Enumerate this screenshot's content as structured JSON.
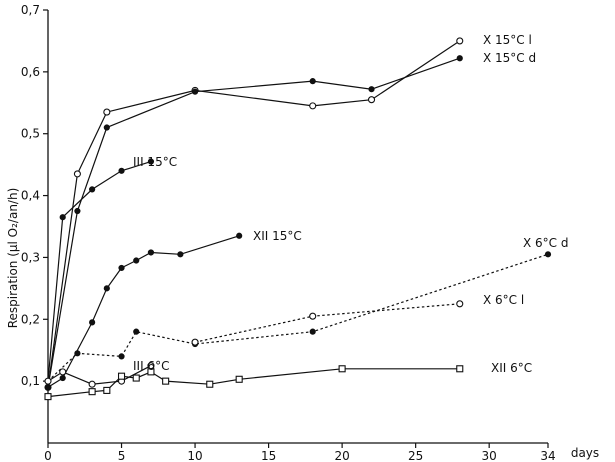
{
  "chart_data": {
    "type": "line",
    "title": "",
    "xlabel": "days",
    "ylabel": "Respiration (µl O₂/an/h)",
    "xlim": [
      0,
      34
    ],
    "ylim": [
      0,
      0.7
    ],
    "xticks": [
      0,
      5,
      10,
      15,
      20,
      25,
      30,
      34
    ],
    "xtick_labels": [
      "0",
      "5",
      "10",
      "15",
      "20",
      "25",
      "30",
      "34"
    ],
    "yticks": [
      0.1,
      0.2,
      0.3,
      0.4,
      0.5,
      0.6,
      0.7
    ],
    "ytick_labels": [
      "0,1",
      "0,2",
      "0,3",
      "0,4",
      "0,5",
      "0,6",
      "0,7"
    ],
    "grid": false,
    "series": [
      {
        "name": "X 15°C l",
        "marker": "open-circle",
        "line": "solid",
        "x": [
          0,
          2,
          4,
          10,
          18,
          22,
          28
        ],
        "y": [
          0.09,
          0.435,
          0.535,
          0.57,
          0.545,
          0.555,
          0.65
        ]
      },
      {
        "name": "X 15°C d",
        "marker": "filled-circle",
        "line": "solid",
        "x": [
          0,
          2,
          4,
          10,
          18,
          22,
          28
        ],
        "y": [
          0.09,
          0.375,
          0.51,
          0.568,
          0.585,
          0.572,
          0.622
        ]
      },
      {
        "name": "III 15°C",
        "marker": "filled-circle",
        "line": "solid",
        "x": [
          0,
          1,
          3,
          5,
          7
        ],
        "y": [
          0.1,
          0.365,
          0.41,
          0.44,
          0.455
        ]
      },
      {
        "name": "XII 15°C",
        "marker": "filled-circle",
        "line": "solid",
        "x": [
          0,
          1,
          3,
          4,
          5,
          6,
          7,
          9,
          13
        ],
        "y": [
          0.09,
          0.105,
          0.195,
          0.25,
          0.283,
          0.295,
          0.308,
          0.305,
          0.335
        ]
      },
      {
        "name": "X 6°C d",
        "marker": "filled-circle",
        "line": "dotted",
        "x": [
          0,
          2,
          5,
          6,
          10,
          18,
          34
        ],
        "y": [
          0.1,
          0.145,
          0.14,
          0.18,
          0.16,
          0.18,
          0.305
        ]
      },
      {
        "name": "X 6°C l",
        "marker": "open-circle",
        "line": "dotted",
        "x": [
          10,
          18,
          28
        ],
        "y": [
          0.163,
          0.205,
          0.225
        ]
      },
      {
        "name": "III 6°C",
        "marker": "open-circle",
        "line": "solid",
        "x": [
          0,
          1,
          3,
          5,
          7
        ],
        "y": [
          0.1,
          0.115,
          0.095,
          0.1,
          0.125
        ]
      },
      {
        "name": "XII 6°C",
        "marker": "open-square",
        "line": "solid",
        "x": [
          0,
          3,
          4,
          5,
          6,
          7,
          8,
          11,
          13,
          20,
          28
        ],
        "y": [
          0.075,
          0.083,
          0.085,
          0.108,
          0.105,
          0.115,
          0.1,
          0.095,
          0.103,
          0.12,
          0.12
        ]
      }
    ]
  }
}
